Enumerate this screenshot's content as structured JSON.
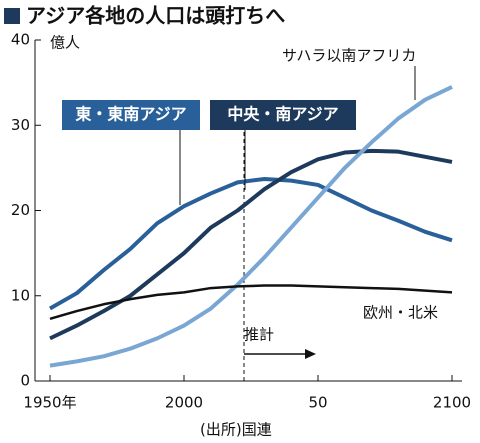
{
  "chart_data": {
    "type": "line",
    "title": "アジア各地の人口は頭打ちへ",
    "y_label": "億人",
    "source": "(出所)国連",
    "annotation": "推計",
    "x": [
      1950,
      1960,
      1970,
      1980,
      1990,
      2000,
      2010,
      2020,
      2030,
      2040,
      2050,
      2060,
      2070,
      2080,
      2090,
      2100
    ],
    "series": [
      {
        "name": "東・東南アジア",
        "color": "#2a6099",
        "values": [
          8.5,
          10.3,
          13,
          15.5,
          18.5,
          20.5,
          22,
          23.3,
          23.7,
          23.5,
          23,
          21.5,
          20,
          18.8,
          17.5,
          16.5
        ]
      },
      {
        "name": "中央・南アジア",
        "color": "#1d3a5c",
        "values": [
          5,
          6.5,
          8.2,
          10,
          12.5,
          15,
          18,
          20,
          22.5,
          24.5,
          26,
          26.8,
          27,
          26.9,
          26.3,
          25.7
        ]
      },
      {
        "name": "サハラ以南アフリカ",
        "color": "#7aa6d4",
        "values": [
          1.8,
          2.3,
          2.9,
          3.8,
          5,
          6.5,
          8.5,
          11.3,
          14.5,
          18,
          21.5,
          25,
          28,
          30.8,
          33,
          34.5
        ]
      },
      {
        "name": "欧州・北米",
        "color": "#111111",
        "values": [
          7.3,
          8.2,
          9,
          9.6,
          10.1,
          10.4,
          10.9,
          11.1,
          11.2,
          11.2,
          11.1,
          11,
          10.9,
          10.8,
          10.6,
          10.4
        ]
      }
    ],
    "xlim": [
      1950,
      2100
    ],
    "xticks": [
      {
        "value": 1950,
        "label": "1950年"
      },
      2000,
      {
        "value": 2050,
        "label": "50"
      },
      2100
    ],
    "ylim": [
      0,
      40
    ],
    "yticks": [
      0,
      10,
      20,
      30,
      40
    ]
  }
}
